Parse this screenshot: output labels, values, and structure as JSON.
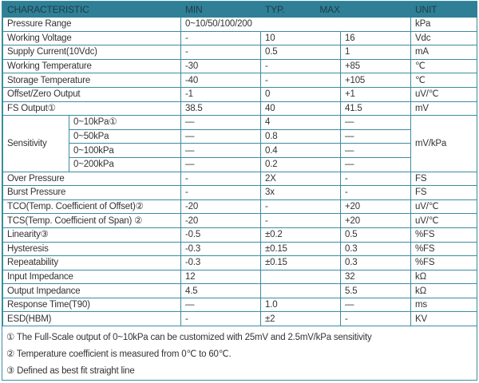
{
  "header": {
    "characteristic": "CHARACTERISTIC",
    "min": "MIN",
    "typ": "TYP.",
    "max": "MAX",
    "unit": "UNIT"
  },
  "pressure_range": {
    "label": "Pressure Range",
    "value": "0~10/50/100/200",
    "unit": "kPa"
  },
  "rows_a": [
    {
      "label": "Working Voltage",
      "min": "-",
      "typ": "10",
      "max": "16",
      "unit": "Vdc"
    },
    {
      "label": "Supply Current(10Vdc)",
      "min": "-",
      "typ": "0.5",
      "max": "1",
      "unit": "mA"
    },
    {
      "label": "Working Temperature",
      "min": "-30",
      "typ": "-",
      "max": "+85",
      "unit": "℃"
    },
    {
      "label": "Storage Temperature",
      "min": "-40",
      "typ": "-",
      "max": "+105",
      "unit": "℃"
    },
    {
      "label": "Offset/Zero Output",
      "min": "-1",
      "typ": "0",
      "max": "+1",
      "unit": "uV/℃"
    },
    {
      "label": "FS Output①",
      "min": "38.5",
      "typ": "40",
      "max": "41.5",
      "unit": "mV"
    }
  ],
  "sensitivity": {
    "label": "Sensitivity",
    "unit": "mV/kPa",
    "rows": [
      {
        "range": "0~10kPa①",
        "min": "—",
        "typ": "4",
        "max": "—"
      },
      {
        "range": "0~50kPa",
        "min": "—",
        "typ": "0.8",
        "max": "—"
      },
      {
        "range": "0~100kPa",
        "min": "—",
        "typ": "0.4",
        "max": "—"
      },
      {
        "range": "0~200kPa",
        "min": "—",
        "typ": "0.2",
        "max": "—"
      }
    ]
  },
  "rows_b": [
    {
      "label": "Over Pressure",
      "min": "-",
      "typ": "2X",
      "max": "-",
      "unit": "FS"
    },
    {
      "label": "Burst Pressure",
      "min": "-",
      "typ": "3x",
      "max": "-",
      "unit": "FS"
    },
    {
      "label": "TCO(Temp. Coefficient of Offset)②",
      "min": "-20",
      "typ": "-",
      "max": "+20",
      "unit": "uV/℃"
    },
    {
      "label": "TCS(Temp. Coefficient of Span) ②",
      "min": "-20",
      "typ": "-",
      "max": "+20",
      "unit": "uV/℃"
    },
    {
      "label": "Linearity③",
      "min": "-0.5",
      "typ": "±0.2",
      "max": "0.5",
      "unit": "%FS"
    },
    {
      "label": "Hysteresis",
      "min": "-0.3",
      "typ": "±0.15",
      "max": "0.3",
      "unit": "%FS"
    },
    {
      "label": "Repeatability",
      "min": "-0.3",
      "typ": "±0.15",
      "max": "0.3",
      "unit": "%FS"
    },
    {
      "label": "Input Impedance",
      "min": "12",
      "typ": "",
      "max": "32",
      "unit": "kΩ"
    },
    {
      "label": "Output Impedance",
      "min": "4.5",
      "typ": "",
      "max": "5.5",
      "unit": "kΩ"
    },
    {
      "label": "Response Time(T90)",
      "min": "—",
      "typ": "1.0",
      "max": " —",
      "unit": "ms"
    },
    {
      "label": "ESD(HBM)",
      "min": "-",
      "typ": "±2",
      "max": "-",
      "unit": "KV"
    }
  ],
  "notes": [
    "① The Full-Scale output of 0~10kPa can be customized with 25mV and 2.5mV/kPa sensitivity",
    "② Temperature coefficient is measured from 0℃  to 60℃.",
    "③ Defined as best fit straight line"
  ],
  "colors": {
    "header_bg": "#2f7f96",
    "border": "#3b8ca1"
  }
}
